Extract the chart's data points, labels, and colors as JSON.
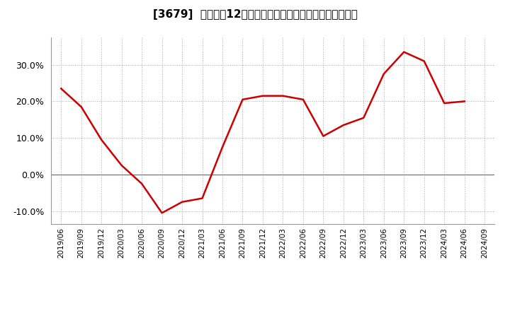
{
  "title": "[3679]  売上高の12か月移動合計の対前年同期増減率の推移",
  "line_color": "#cc0000",
  "background_color": "#ffffff",
  "plot_bg_color": "#ffffff",
  "grid_color": "#aaaaaa",
  "ylim": [
    -0.135,
    0.375
  ],
  "yticks": [
    -0.1,
    0.0,
    0.1,
    0.2,
    0.3
  ],
  "dates": [
    "2019/06",
    "2019/09",
    "2019/12",
    "2020/03",
    "2020/06",
    "2020/09",
    "2020/12",
    "2021/03",
    "2021/06",
    "2021/09",
    "2021/12",
    "2022/03",
    "2022/06",
    "2022/09",
    "2022/12",
    "2023/03",
    "2023/06",
    "2023/09",
    "2023/12",
    "2024/03",
    "2024/06",
    "2024/09"
  ],
  "values": [
    0.235,
    0.185,
    0.095,
    0.025,
    -0.025,
    -0.105,
    -0.075,
    -0.065,
    0.075,
    0.205,
    0.215,
    0.215,
    0.205,
    0.105,
    0.135,
    0.155,
    0.275,
    0.335,
    0.31,
    0.195,
    0.2,
    null
  ]
}
